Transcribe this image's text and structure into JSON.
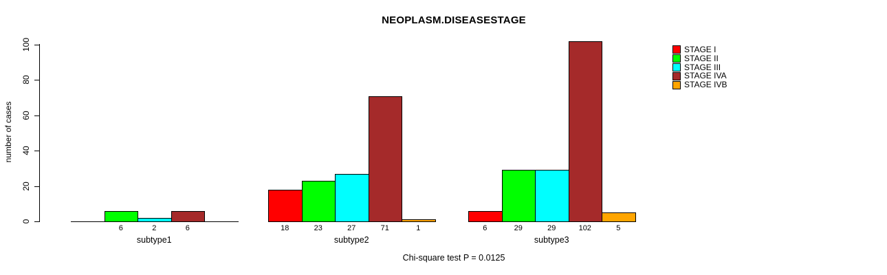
{
  "title": "NEOPLASM.DISEASESTAGE",
  "caption": "Chi-square test P = 0.0125",
  "y_axis": {
    "label": "number of cases",
    "ticks": [
      0,
      20,
      40,
      60,
      80,
      100
    ]
  },
  "legend": [
    {
      "label": "STAGE I",
      "color": "#FF0000"
    },
    {
      "label": "STAGE II",
      "color": "#00FF00"
    },
    {
      "label": "STAGE III",
      "color": "#00FFFF"
    },
    {
      "label": "STAGE IVA",
      "color": "#A52A2A"
    },
    {
      "label": "STAGE IVB",
      "color": "#FFA500"
    }
  ],
  "chart_data": {
    "type": "bar",
    "grouped": true,
    "title": "NEOPLASM.DISEASESTAGE",
    "xlabel": "",
    "ylabel": "number of cases",
    "ylim": [
      0,
      100
    ],
    "grid": false,
    "legend_position": "top-right",
    "categories": [
      "subtype1",
      "subtype2",
      "subtype3"
    ],
    "series": [
      {
        "name": "STAGE I",
        "color": "#FF0000",
        "values": [
          0,
          18,
          6
        ]
      },
      {
        "name": "STAGE II",
        "color": "#00FF00",
        "values": [
          6,
          23,
          29
        ]
      },
      {
        "name": "STAGE III",
        "color": "#00FFFF",
        "values": [
          2,
          27,
          29
        ]
      },
      {
        "name": "STAGE IVA",
        "color": "#A52A2A",
        "values": [
          6,
          71,
          102
        ]
      },
      {
        "name": "STAGE IVB",
        "color": "#FFA500",
        "values": [
          0,
          1,
          5
        ]
      }
    ],
    "bar_count_labels": [
      [
        "",
        "6",
        "2",
        "6",
        ""
      ],
      [
        "18",
        "23",
        "27",
        "71",
        "1"
      ],
      [
        "6",
        "29",
        "29",
        "102",
        "5"
      ]
    ]
  }
}
